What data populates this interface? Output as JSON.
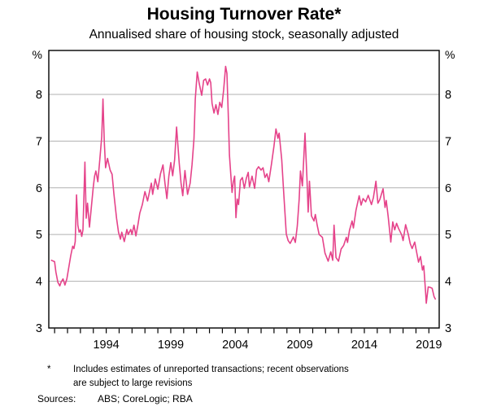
{
  "header": {
    "title": "Housing Turnover Rate*",
    "subtitle": "Annualised share of housing stock, seasonally adjusted"
  },
  "footnote": {
    "marker": "*",
    "lines": [
      "Includes estimates of unreported transactions; recent observations",
      "are subject to large revisions"
    ],
    "sources_label": "Sources:",
    "sources": "ABS; CoreLogic; RBA"
  },
  "chart_data": {
    "type": "line",
    "title": "Housing Turnover Rate*",
    "subtitle": "Annualised share of housing stock, seasonally adjusted",
    "unit_left": "%",
    "unit_right": "%",
    "ylim": [
      3,
      8.94
    ],
    "y_label_values": [
      3,
      4,
      5,
      6,
      7,
      8
    ],
    "y_gridline_values": [
      4,
      5,
      6,
      7,
      8
    ],
    "x_range": [
      1989.55,
      2019.8
    ],
    "x_minor_ticks": {
      "start": 1990,
      "end": 2019,
      "step": 1
    },
    "x_labeled_ticks": [
      1994,
      1999,
      2004,
      2009,
      2014,
      2019
    ],
    "grid_on": true,
    "legend": "none",
    "colors": {
      "line": "#e5438a",
      "grid": "#b0b0b0",
      "axis": "#000000"
    },
    "series": [
      {
        "name": "housing-turnover-rate",
        "points": [
          [
            1989.75,
            4.45
          ],
          [
            1990,
            4.42
          ],
          [
            1990.1,
            4.2
          ],
          [
            1990.25,
            3.98
          ],
          [
            1990.4,
            3.9
          ],
          [
            1990.5,
            3.98
          ],
          [
            1990.65,
            4.05
          ],
          [
            1990.8,
            3.92
          ],
          [
            1990.95,
            4.05
          ],
          [
            1991.1,
            4.3
          ],
          [
            1991.25,
            4.55
          ],
          [
            1991.4,
            4.75
          ],
          [
            1991.5,
            4.7
          ],
          [
            1991.6,
            4.85
          ],
          [
            1991.7,
            5.85
          ],
          [
            1991.8,
            5.2
          ],
          [
            1991.9,
            5.05
          ],
          [
            1992,
            5.1
          ],
          [
            1992.1,
            4.96
          ],
          [
            1992.2,
            5.1
          ],
          [
            1992.35,
            6.55
          ],
          [
            1992.45,
            5.35
          ],
          [
            1992.55,
            5.67
          ],
          [
            1992.7,
            5.16
          ],
          [
            1992.85,
            5.6
          ],
          [
            1993,
            6.02
          ],
          [
            1993.1,
            6.25
          ],
          [
            1993.2,
            6.36
          ],
          [
            1993.35,
            6.13
          ],
          [
            1993.5,
            6.6
          ],
          [
            1993.65,
            7.1
          ],
          [
            1993.75,
            7.9
          ],
          [
            1993.85,
            7
          ],
          [
            1993.95,
            6.43
          ],
          [
            1994.1,
            6.63
          ],
          [
            1994.3,
            6.38
          ],
          [
            1994.45,
            6.29
          ],
          [
            1994.6,
            5.86
          ],
          [
            1994.8,
            5.35
          ],
          [
            1994.95,
            5.05
          ],
          [
            1995.1,
            4.9
          ],
          [
            1995.2,
            5.05
          ],
          [
            1995.4,
            4.85
          ],
          [
            1995.6,
            5.11
          ],
          [
            1995.7,
            5
          ],
          [
            1995.9,
            5.11
          ],
          [
            1996,
            5
          ],
          [
            1996.15,
            5.2
          ],
          [
            1996.3,
            4.97
          ],
          [
            1996.45,
            5.2
          ],
          [
            1996.6,
            5.46
          ],
          [
            1996.8,
            5.64
          ],
          [
            1997,
            5.92
          ],
          [
            1997.2,
            5.72
          ],
          [
            1997.5,
            6.1
          ],
          [
            1997.6,
            5.86
          ],
          [
            1997.8,
            6.19
          ],
          [
            1998,
            5.97
          ],
          [
            1998.2,
            6.3
          ],
          [
            1998.4,
            6.49
          ],
          [
            1998.55,
            6.1
          ],
          [
            1998.7,
            5.77
          ],
          [
            1998.85,
            6.25
          ],
          [
            1999,
            6.54
          ],
          [
            1999.15,
            6.26
          ],
          [
            1999.3,
            6.6
          ],
          [
            1999.45,
            7.3
          ],
          [
            1999.65,
            6.54
          ],
          [
            1999.8,
            6.1
          ],
          [
            1999.93,
            5.83
          ],
          [
            2000.1,
            6.37
          ],
          [
            2000.3,
            5.86
          ],
          [
            2000.5,
            6.1
          ],
          [
            2000.65,
            6.49
          ],
          [
            2000.8,
            7.05
          ],
          [
            2000.9,
            7.9
          ],
          [
            2001.05,
            8.48
          ],
          [
            2001.2,
            8.24
          ],
          [
            2001.4,
            7.98
          ],
          [
            2001.55,
            8.3
          ],
          [
            2001.7,
            8.33
          ],
          [
            2001.85,
            8.2
          ],
          [
            2002,
            8.33
          ],
          [
            2002.1,
            8.25
          ],
          [
            2002.2,
            7.81
          ],
          [
            2002.35,
            7.6
          ],
          [
            2002.5,
            7.78
          ],
          [
            2002.65,
            7.57
          ],
          [
            2002.8,
            7.83
          ],
          [
            2002.95,
            7.72
          ],
          [
            2003.1,
            8.1
          ],
          [
            2003.25,
            8.6
          ],
          [
            2003.35,
            8.45
          ],
          [
            2003.45,
            7.6
          ],
          [
            2003.55,
            6.7
          ],
          [
            2003.65,
            6.3
          ],
          [
            2003.75,
            5.9
          ],
          [
            2003.85,
            6.13
          ],
          [
            2003.95,
            6.25
          ],
          [
            2004.05,
            5.36
          ],
          [
            2004.15,
            5.76
          ],
          [
            2004.25,
            5.64
          ],
          [
            2004.4,
            6.16
          ],
          [
            2004.55,
            6.22
          ],
          [
            2004.7,
            5.99
          ],
          [
            2004.85,
            6.2
          ],
          [
            2005,
            6.33
          ],
          [
            2005.1,
            6.02
          ],
          [
            2005.3,
            6.25
          ],
          [
            2005.5,
            5.99
          ],
          [
            2005.65,
            6.39
          ],
          [
            2005.8,
            6.45
          ],
          [
            2006,
            6.38
          ],
          [
            2006.15,
            6.43
          ],
          [
            2006.3,
            6.22
          ],
          [
            2006.45,
            6.3
          ],
          [
            2006.6,
            6.13
          ],
          [
            2006.8,
            6.5
          ],
          [
            2007,
            6.9
          ],
          [
            2007.15,
            7.26
          ],
          [
            2007.3,
            7.06
          ],
          [
            2007.4,
            7.17
          ],
          [
            2007.6,
            6.6
          ],
          [
            2007.75,
            5.9
          ],
          [
            2007.95,
            5.01
          ],
          [
            2008.1,
            4.87
          ],
          [
            2008.25,
            4.81
          ],
          [
            2008.4,
            4.89
          ],
          [
            2008.5,
            4.95
          ],
          [
            2008.65,
            4.83
          ],
          [
            2008.8,
            5.18
          ],
          [
            2008.95,
            5.75
          ],
          [
            2009.05,
            6.36
          ],
          [
            2009.2,
            6.04
          ],
          [
            2009.4,
            7.17
          ],
          [
            2009.55,
            6.2
          ],
          [
            2009.65,
            5.48
          ],
          [
            2009.75,
            6.14
          ],
          [
            2009.9,
            5.4
          ],
          [
            2010.1,
            5.29
          ],
          [
            2010.2,
            5.43
          ],
          [
            2010.35,
            5.2
          ],
          [
            2010.5,
            5
          ],
          [
            2010.75,
            4.94
          ],
          [
            2010.95,
            4.6
          ],
          [
            2011.2,
            4.43
          ],
          [
            2011.4,
            4.63
          ],
          [
            2011.55,
            4.45
          ],
          [
            2011.65,
            5.2
          ],
          [
            2011.8,
            4.51
          ],
          [
            2012,
            4.43
          ],
          [
            2012.2,
            4.69
          ],
          [
            2012.4,
            4.77
          ],
          [
            2012.6,
            4.94
          ],
          [
            2012.7,
            4.83
          ],
          [
            2012.85,
            5.09
          ],
          [
            2013.05,
            5.29
          ],
          [
            2013.15,
            5.14
          ],
          [
            2013.35,
            5.52
          ],
          [
            2013.6,
            5.83
          ],
          [
            2013.75,
            5.63
          ],
          [
            2013.9,
            5.77
          ],
          [
            2014.1,
            5.7
          ],
          [
            2014.3,
            5.84
          ],
          [
            2014.55,
            5.64
          ],
          [
            2014.7,
            5.79
          ],
          [
            2014.9,
            6.14
          ],
          [
            2015.05,
            5.67
          ],
          [
            2015.2,
            5.75
          ],
          [
            2015.45,
            5.98
          ],
          [
            2015.6,
            5.58
          ],
          [
            2015.7,
            5.73
          ],
          [
            2015.85,
            5.38
          ],
          [
            2016.05,
            4.84
          ],
          [
            2016.2,
            5.27
          ],
          [
            2016.35,
            5.1
          ],
          [
            2016.5,
            5.24
          ],
          [
            2016.65,
            5.13
          ],
          [
            2016.9,
            4.99
          ],
          [
            2017,
            4.87
          ],
          [
            2017.2,
            5.21
          ],
          [
            2017.4,
            5.01
          ],
          [
            2017.55,
            4.81
          ],
          [
            2017.7,
            4.7
          ],
          [
            2017.9,
            4.84
          ],
          [
            2018,
            4.7
          ],
          [
            2018.2,
            4.41
          ],
          [
            2018.35,
            4.53
          ],
          [
            2018.5,
            4.24
          ],
          [
            2018.6,
            4.33
          ],
          [
            2018.75,
            3.76
          ],
          [
            2018.8,
            3.53
          ],
          [
            2018.95,
            3.88
          ],
          [
            2019.1,
            3.87
          ],
          [
            2019.25,
            3.85
          ],
          [
            2019.4,
            3.67
          ],
          [
            2019.5,
            3.62
          ]
        ]
      }
    ]
  }
}
